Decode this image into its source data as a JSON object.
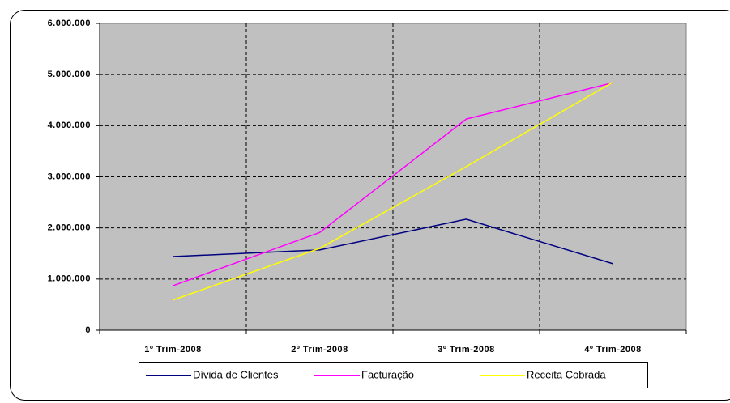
{
  "chart_data": {
    "type": "line",
    "categories": [
      "1º Trim-2008",
      "2º Trim-2008",
      "3º Trim-2008",
      "4º Trim-2008"
    ],
    "series": [
      {
        "name": "Dívida de Clientes",
        "color": "#000080",
        "values": [
          1440000,
          1570000,
          2170000,
          1300000
        ]
      },
      {
        "name": "Facturação",
        "color": "#ff00ff",
        "values": [
          870000,
          1910000,
          4130000,
          4840000
        ]
      },
      {
        "name": "Receita Cobrada",
        "color": "#ffff00",
        "values": [
          590000,
          1600000,
          3200000,
          4850000
        ]
      }
    ],
    "ylim": [
      0,
      6000000
    ],
    "yticks": [
      0,
      {
        "value": 1000000,
        "label": "1.000.000"
      },
      {
        "value": 2000000,
        "label": "2.000.000"
      },
      {
        "value": 3000000,
        "label": "3.000.000"
      },
      {
        "value": 4000000,
        "label": "4.000.000"
      },
      {
        "value": 5000000,
        "label": "5.000.000"
      },
      {
        "value": 6000000,
        "label": "6.000.000"
      }
    ],
    "grid": true,
    "legend": "bottom"
  }
}
